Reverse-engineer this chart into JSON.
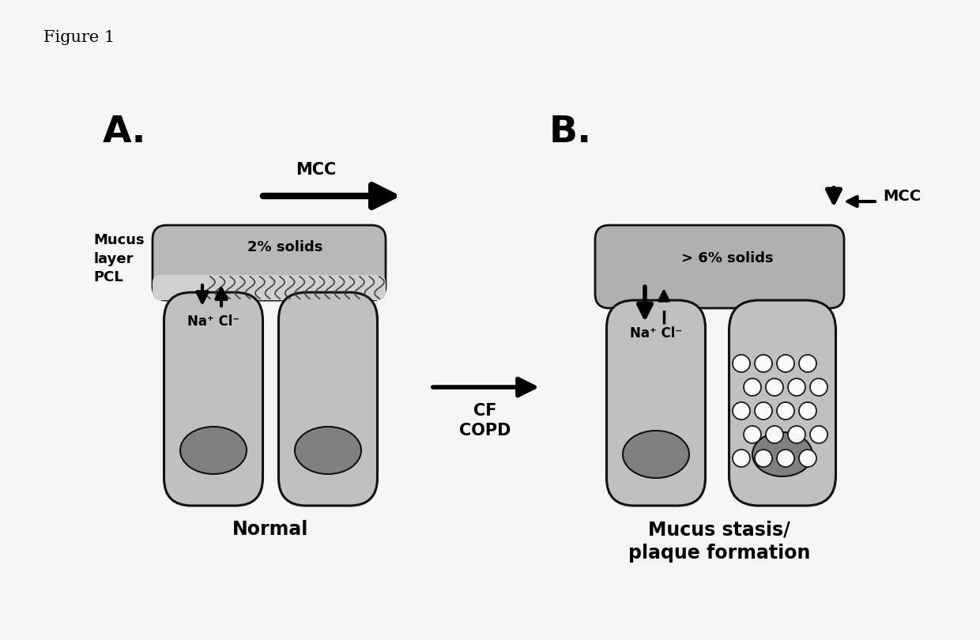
{
  "fig_label": "Figure 1",
  "panel_A_label": "A.",
  "panel_B_label": "B.",
  "label_mucus_layer": "Mucus\nlayer\nPCL",
  "label_2pct": "2% solids",
  "label_NaCl_A": "Na⁺ Cl⁻",
  "label_Normal": "Normal",
  "label_6pct": "> 6% solids",
  "label_NaCl_B": "Na⁺ Cl⁻",
  "label_mucus_stasis": "Mucus stasis/\nplaque formation",
  "label_MCC_A": "MCC",
  "label_MCC_B": "MCC",
  "label_CF_COPD": "CF\nCOPD",
  "bg_color": "#f5f5f5",
  "cell_fill": "#c0c0c0",
  "cell_edge": "#111111",
  "mucus_fill_A": "#b8b8b8",
  "mucus_fill_B": "#b0b0b0",
  "nucleus_fill": "#808080",
  "pcl_fill": "#d0d0d0",
  "arrow_color": "#111111"
}
